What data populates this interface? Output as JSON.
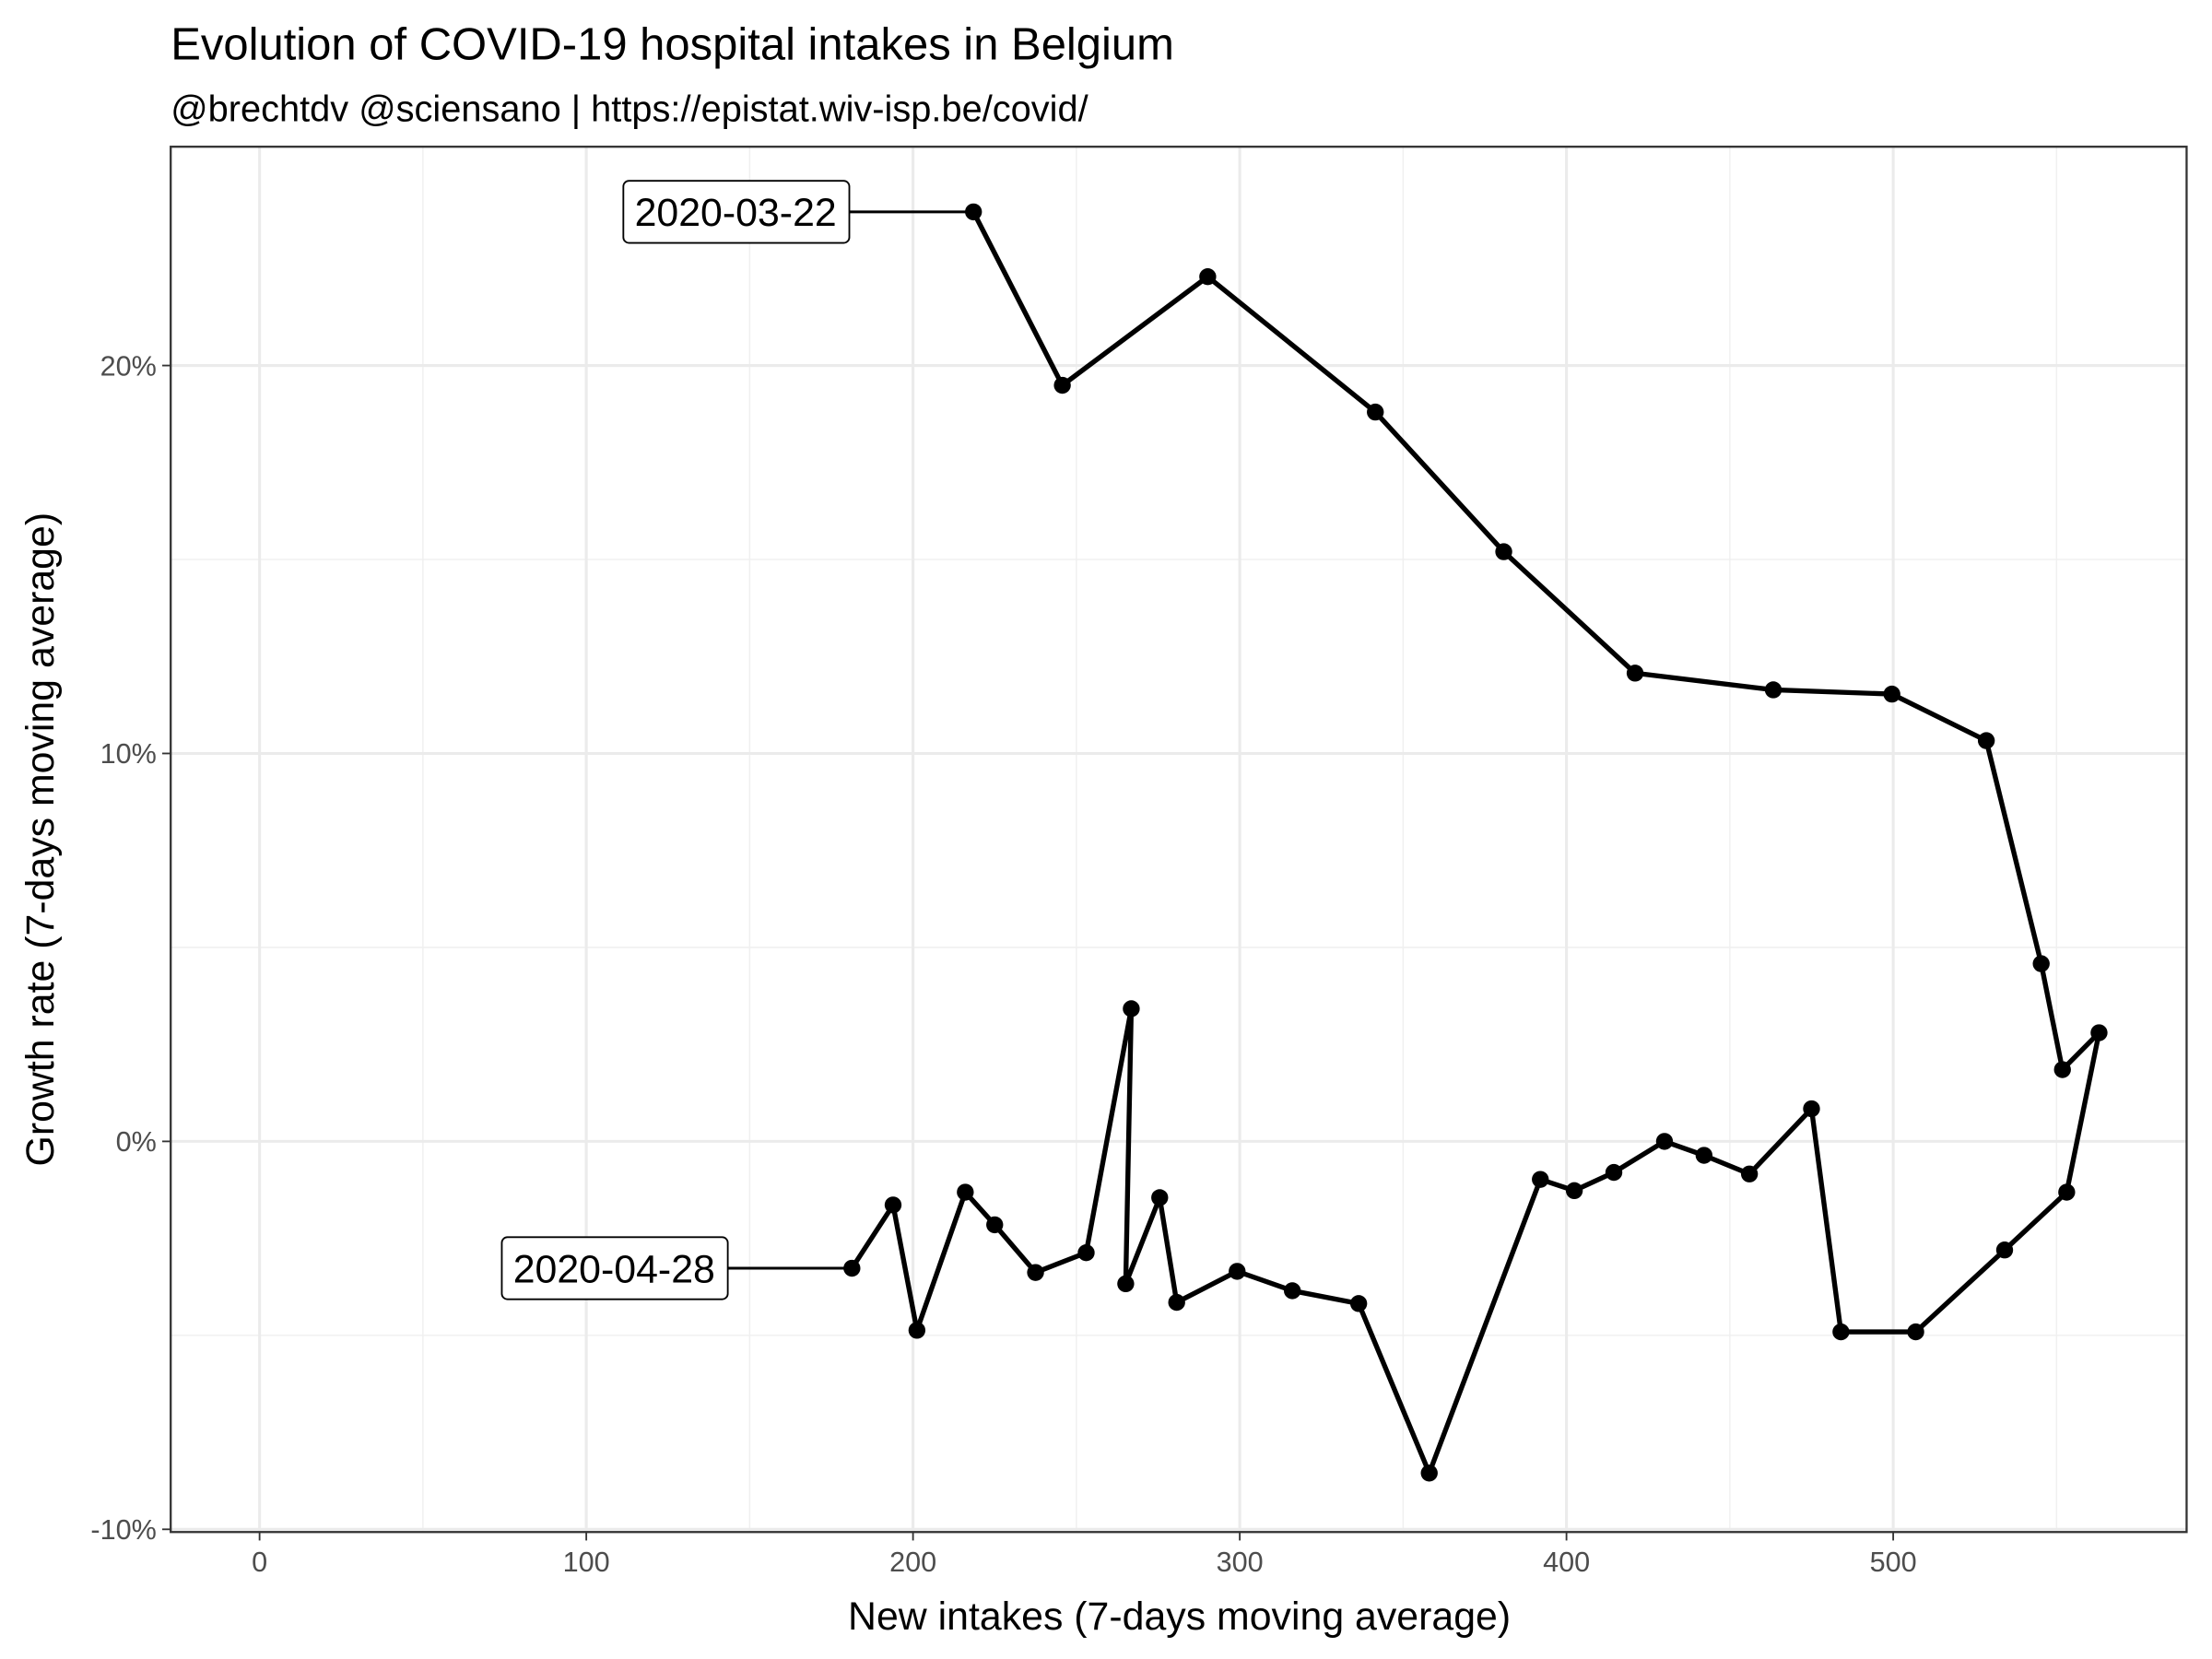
{
  "chart_data": {
    "type": "path",
    "title": "Evolution of COVID-19 hospital intakes in Belgium",
    "subtitle": "@brechtdv @sciensano | https://epistat.wiv-isp.be/covid/",
    "x_label": "New intakes (7-days moving average)",
    "y_label": "Growth rate (7-days moving average)",
    "color": "#000000",
    "x": [
      218.5,
      245.7,
      290.2,
      341.5,
      380.8,
      421.0,
      463.3,
      499.6,
      528.5,
      545.3,
      551.8,
      563.0,
      553.1,
      534.1,
      506.9,
      484.0,
      475.0,
      456.0,
      442.1,
      430.0,
      414.5,
      402.4,
      392.0,
      358.0,
      336.4,
      316.1,
      299.2,
      280.7,
      275.5,
      265.1,
      266.8,
      253.0,
      237.5,
      225.0,
      216.0,
      201.2,
      193.9,
      181.3
    ],
    "values": [
      23.96,
      19.49,
      22.29,
      18.8,
      15.2,
      12.07,
      11.64,
      11.53,
      10.33,
      4.58,
      1.85,
      2.8,
      -1.31,
      -2.8,
      -4.91,
      -4.91,
      0.84,
      -0.84,
      -0.36,
      0,
      -0.8,
      -1.27,
      -0.98,
      -8.55,
      -4.18,
      -3.85,
      -3.35,
      -4.15,
      -1.45,
      -3.67,
      3.42,
      -2.87,
      -3.38,
      -2.15,
      -1.31,
      -4.87,
      -1.64,
      -3.27
    ],
    "annotations": [
      "2020-03-22",
      "2020-04-28"
    ],
    "xlim": [
      -27.2,
      589.8
    ],
    "ylim": [
      -10.07,
      25.64
    ],
    "xticks": [
      0,
      100,
      200,
      300,
      400,
      500
    ],
    "yticks": [
      {
        "value": -10,
        "label": "-10%"
      },
      {
        "value": 0,
        "label": "0%"
      },
      {
        "value": 10,
        "label": "10%"
      },
      {
        "value": 20,
        "label": "20%"
      }
    ],
    "xminorticks": [
      50,
      150,
      250,
      350,
      450,
      550
    ],
    "yminorticks": [
      -5,
      5,
      15
    ],
    "grid": true
  }
}
